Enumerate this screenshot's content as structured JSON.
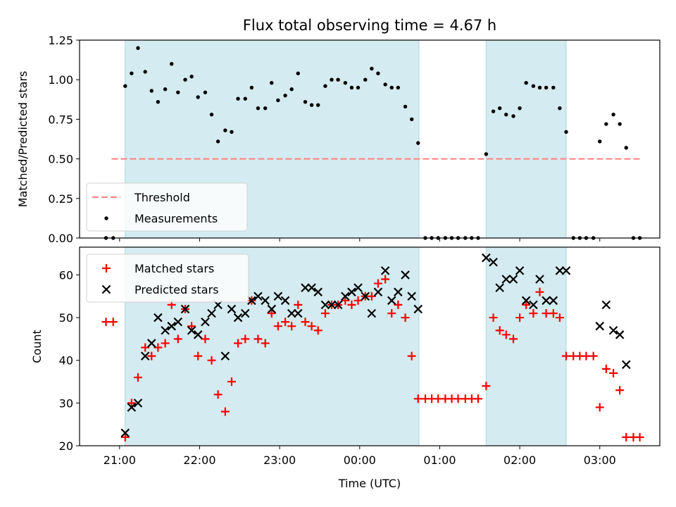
{
  "chart_data": {
    "type": "scatter",
    "title": "Flux total observing time = 4.67 h",
    "xlabel": "Time (UTC)",
    "x_ticks": [
      "21:00",
      "22:00",
      "23:00",
      "00:00",
      "01:00",
      "02:00",
      "03:00"
    ],
    "x_range_hours": [
      -0.5,
      6.75
    ],
    "observing_windows_hours": [
      [
        0.07,
        3.74
      ],
      [
        4.58,
        5.58
      ]
    ],
    "window_color": "#d4ebf1",
    "panels": [
      {
        "name": "ratio",
        "ylabel": "Matched/Predicted stars",
        "ylim": [
          0,
          1.25
        ],
        "y_ticks": [
          "0.00",
          "0.25",
          "0.50",
          "0.75",
          "1.00",
          "1.25"
        ],
        "legend_position": "lower left",
        "threshold": {
          "name": "Threshold",
          "value": 0.5,
          "x_range": [
            -0.1,
            6.5
          ],
          "color": "#ff7f7f"
        },
        "series": [
          {
            "name": "Measurements",
            "marker": "dot",
            "color": "#000000",
            "points": [
              [
                -0.17,
                0.0
              ],
              [
                -0.08,
                0.0
              ],
              [
                0.07,
                0.96
              ],
              [
                0.15,
                1.04
              ],
              [
                0.23,
                1.2
              ],
              [
                0.32,
                1.05
              ],
              [
                0.4,
                0.93
              ],
              [
                0.48,
                0.86
              ],
              [
                0.57,
                0.94
              ],
              [
                0.65,
                1.1
              ],
              [
                0.73,
                0.92
              ],
              [
                0.82,
                1.0
              ],
              [
                0.9,
                1.02
              ],
              [
                0.98,
                0.89
              ],
              [
                1.07,
                0.92
              ],
              [
                1.15,
                0.78
              ],
              [
                1.23,
                0.61
              ],
              [
                1.32,
                0.68
              ],
              [
                1.4,
                0.67
              ],
              [
                1.48,
                0.88
              ],
              [
                1.57,
                0.88
              ],
              [
                1.65,
                0.95
              ],
              [
                1.73,
                0.82
              ],
              [
                1.82,
                0.82
              ],
              [
                1.9,
                0.98
              ],
              [
                1.98,
                0.87
              ],
              [
                2.07,
                0.9
              ],
              [
                2.15,
                0.94
              ],
              [
                2.23,
                1.04
              ],
              [
                2.32,
                0.86
              ],
              [
                2.4,
                0.84
              ],
              [
                2.48,
                0.84
              ],
              [
                2.57,
                0.96
              ],
              [
                2.65,
                1.0
              ],
              [
                2.73,
                1.0
              ],
              [
                2.82,
                0.98
              ],
              [
                2.9,
                0.95
              ],
              [
                2.98,
                0.95
              ],
              [
                3.07,
                1.0
              ],
              [
                3.15,
                1.07
              ],
              [
                3.23,
                1.04
              ],
              [
                3.32,
                0.97
              ],
              [
                3.4,
                0.95
              ],
              [
                3.48,
                0.95
              ],
              [
                3.57,
                0.83
              ],
              [
                3.65,
                0.75
              ],
              [
                3.73,
                0.6
              ],
              [
                3.82,
                0.0
              ],
              [
                3.9,
                0.0
              ],
              [
                3.98,
                0.0
              ],
              [
                4.07,
                0.0
              ],
              [
                4.15,
                0.0
              ],
              [
                4.23,
                0.0
              ],
              [
                4.32,
                0.0
              ],
              [
                4.4,
                0.0
              ],
              [
                4.48,
                0.0
              ],
              [
                4.58,
                0.53
              ],
              [
                4.67,
                0.8
              ],
              [
                4.75,
                0.82
              ],
              [
                4.83,
                0.78
              ],
              [
                4.92,
                0.77
              ],
              [
                5.0,
                0.82
              ],
              [
                5.08,
                0.98
              ],
              [
                5.17,
                0.96
              ],
              [
                5.25,
                0.95
              ],
              [
                5.33,
                0.95
              ],
              [
                5.42,
                0.95
              ],
              [
                5.5,
                0.82
              ],
              [
                5.58,
                0.67
              ],
              [
                5.67,
                0.0
              ],
              [
                5.75,
                0.0
              ],
              [
                5.83,
                0.0
              ],
              [
                5.92,
                0.0
              ],
              [
                6.0,
                0.61
              ],
              [
                6.08,
                0.72
              ],
              [
                6.17,
                0.78
              ],
              [
                6.25,
                0.72
              ],
              [
                6.33,
                0.57
              ],
              [
                6.42,
                0.0
              ],
              [
                6.5,
                0.0
              ]
            ]
          }
        ]
      },
      {
        "name": "count",
        "ylabel": "Count",
        "ylim": [
          20,
          66.5
        ],
        "y_ticks": [
          "20",
          "30",
          "40",
          "50",
          "60"
        ],
        "legend_position": "upper left",
        "series": [
          {
            "name": "Matched stars",
            "marker": "plus",
            "color": "#ff0000",
            "points": [
              [
                -0.17,
                49
              ],
              [
                -0.08,
                49
              ],
              [
                0.07,
                22
              ],
              [
                0.15,
                30
              ],
              [
                0.23,
                36
              ],
              [
                0.32,
                43
              ],
              [
                0.4,
                41
              ],
              [
                0.48,
                43
              ],
              [
                0.57,
                44
              ],
              [
                0.65,
                53
              ],
              [
                0.73,
                45
              ],
              [
                0.82,
                52
              ],
              [
                0.9,
                48
              ],
              [
                0.98,
                41
              ],
              [
                1.07,
                45
              ],
              [
                1.15,
                40
              ],
              [
                1.23,
                32
              ],
              [
                1.32,
                28
              ],
              [
                1.4,
                35
              ],
              [
                1.48,
                44
              ],
              [
                1.57,
                45
              ],
              [
                1.65,
                54
              ],
              [
                1.73,
                45
              ],
              [
                1.82,
                44
              ],
              [
                1.9,
                51
              ],
              [
                1.98,
                48
              ],
              [
                2.07,
                49
              ],
              [
                2.15,
                48
              ],
              [
                2.23,
                53
              ],
              [
                2.32,
                49
              ],
              [
                2.4,
                48
              ],
              [
                2.48,
                47
              ],
              [
                2.57,
                51
              ],
              [
                2.65,
                53
              ],
              [
                2.73,
                53
              ],
              [
                2.82,
                54
              ],
              [
                2.9,
                53
              ],
              [
                2.98,
                54
              ],
              [
                3.07,
                55
              ],
              [
                3.15,
                55
              ],
              [
                3.23,
                58
              ],
              [
                3.32,
                59
              ],
              [
                3.4,
                51
              ],
              [
                3.48,
                53
              ],
              [
                3.57,
                50
              ],
              [
                3.65,
                41
              ],
              [
                3.73,
                31
              ],
              [
                3.82,
                31
              ],
              [
                3.9,
                31
              ],
              [
                3.98,
                31
              ],
              [
                4.07,
                31
              ],
              [
                4.15,
                31
              ],
              [
                4.23,
                31
              ],
              [
                4.32,
                31
              ],
              [
                4.4,
                31
              ],
              [
                4.48,
                31
              ],
              [
                4.58,
                34
              ],
              [
                4.67,
                50
              ],
              [
                4.75,
                47
              ],
              [
                4.83,
                46
              ],
              [
                4.92,
                45
              ],
              [
                5.0,
                50
              ],
              [
                5.08,
                53
              ],
              [
                5.17,
                51
              ],
              [
                5.25,
                56
              ],
              [
                5.33,
                51
              ],
              [
                5.42,
                51
              ],
              [
                5.5,
                50
              ],
              [
                5.58,
                41
              ],
              [
                5.67,
                41
              ],
              [
                5.75,
                41
              ],
              [
                5.83,
                41
              ],
              [
                5.92,
                41
              ],
              [
                6.0,
                29
              ],
              [
                6.08,
                38
              ],
              [
                6.17,
                37
              ],
              [
                6.25,
                33
              ],
              [
                6.33,
                22
              ],
              [
                6.42,
                22
              ],
              [
                6.5,
                22
              ]
            ]
          },
          {
            "name": "Predicted stars",
            "marker": "x",
            "color": "#000000",
            "points": [
              [
                0.07,
                23
              ],
              [
                0.15,
                29
              ],
              [
                0.23,
                30
              ],
              [
                0.32,
                41
              ],
              [
                0.4,
                44
              ],
              [
                0.48,
                50
              ],
              [
                0.57,
                47
              ],
              [
                0.65,
                48
              ],
              [
                0.73,
                49
              ],
              [
                0.82,
                52
              ],
              [
                0.9,
                47
              ],
              [
                0.98,
                46
              ],
              [
                1.07,
                49
              ],
              [
                1.15,
                51
              ],
              [
                1.23,
                53
              ],
              [
                1.32,
                41
              ],
              [
                1.4,
                52
              ],
              [
                1.48,
                50
              ],
              [
                1.57,
                51
              ],
              [
                1.65,
                54
              ],
              [
                1.73,
                55
              ],
              [
                1.82,
                54
              ],
              [
                1.9,
                52
              ],
              [
                1.98,
                55
              ],
              [
                2.07,
                54
              ],
              [
                2.15,
                51
              ],
              [
                2.23,
                51
              ],
              [
                2.32,
                57
              ],
              [
                2.4,
                57
              ],
              [
                2.48,
                56
              ],
              [
                2.57,
                53
              ],
              [
                2.65,
                53
              ],
              [
                2.73,
                53
              ],
              [
                2.82,
                55
              ],
              [
                2.9,
                56
              ],
              [
                2.98,
                57
              ],
              [
                3.07,
                55
              ],
              [
                3.15,
                51
              ],
              [
                3.23,
                56
              ],
              [
                3.32,
                61
              ],
              [
                3.4,
                54
              ],
              [
                3.48,
                56
              ],
              [
                3.57,
                60
              ],
              [
                3.65,
                55
              ],
              [
                3.73,
                52
              ],
              [
                4.58,
                64
              ],
              [
                4.67,
                63
              ],
              [
                4.75,
                57
              ],
              [
                4.83,
                59
              ],
              [
                4.92,
                59
              ],
              [
                5.0,
                61
              ],
              [
                5.08,
                54
              ],
              [
                5.17,
                53
              ],
              [
                5.25,
                59
              ],
              [
                5.33,
                54
              ],
              [
                5.42,
                54
              ],
              [
                5.5,
                61
              ],
              [
                5.58,
                61
              ],
              [
                6.0,
                48
              ],
              [
                6.08,
                53
              ],
              [
                6.17,
                47
              ],
              [
                6.25,
                46
              ],
              [
                6.33,
                39
              ]
            ]
          }
        ]
      }
    ]
  }
}
